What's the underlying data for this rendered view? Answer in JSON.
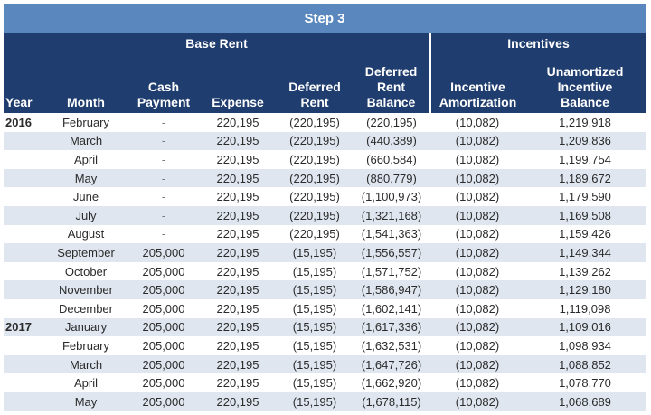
{
  "title": "Step 3",
  "groups": {
    "base_rent": "Base Rent",
    "incentives": "Incentives"
  },
  "headers": {
    "year": "Year",
    "month": "Month",
    "cash_line1": "Cash",
    "cash_line2": "Payment",
    "expense": "Expense",
    "deferred_line1": "Deferred",
    "deferred_line2": "Rent",
    "balance_line1": "Deferred",
    "balance_line2": "Rent",
    "balance_line3": "Balance",
    "amort_line1": "Incentive",
    "amort_line2": "Amortization",
    "unam_line1": "Unamortized",
    "unam_line2": "Incentive",
    "unam_line3": "Balance"
  },
  "rows": [
    {
      "year": "2016",
      "month": "February",
      "cash": "-",
      "expense": "220,195",
      "deferred": "(220,195)",
      "balance": "(220,195)",
      "amortization": "(10,082)",
      "unamortized": "1,219,918"
    },
    {
      "year": "",
      "month": "March",
      "cash": "-",
      "expense": "220,195",
      "deferred": "(220,195)",
      "balance": "(440,389)",
      "amortization": "(10,082)",
      "unamortized": "1,209,836"
    },
    {
      "year": "",
      "month": "April",
      "cash": "-",
      "expense": "220,195",
      "deferred": "(220,195)",
      "balance": "(660,584)",
      "amortization": "(10,082)",
      "unamortized": "1,199,754"
    },
    {
      "year": "",
      "month": "May",
      "cash": "-",
      "expense": "220,195",
      "deferred": "(220,195)",
      "balance": "(880,779)",
      "amortization": "(10,082)",
      "unamortized": "1,189,672"
    },
    {
      "year": "",
      "month": "June",
      "cash": "-",
      "expense": "220,195",
      "deferred": "(220,195)",
      "balance": "(1,100,973)",
      "amortization": "(10,082)",
      "unamortized": "1,179,590"
    },
    {
      "year": "",
      "month": "July",
      "cash": "-",
      "expense": "220,195",
      "deferred": "(220,195)",
      "balance": "(1,321,168)",
      "amortization": "(10,082)",
      "unamortized": "1,169,508"
    },
    {
      "year": "",
      "month": "August",
      "cash": "-",
      "expense": "220,195",
      "deferred": "(220,195)",
      "balance": "(1,541,363)",
      "amortization": "(10,082)",
      "unamortized": "1,159,426"
    },
    {
      "year": "",
      "month": "September",
      "cash": "205,000",
      "expense": "220,195",
      "deferred": "(15,195)",
      "balance": "(1,556,557)",
      "amortization": "(10,082)",
      "unamortized": "1,149,344"
    },
    {
      "year": "",
      "month": "October",
      "cash": "205,000",
      "expense": "220,195",
      "deferred": "(15,195)",
      "balance": "(1,571,752)",
      "amortization": "(10,082)",
      "unamortized": "1,139,262"
    },
    {
      "year": "",
      "month": "November",
      "cash": "205,000",
      "expense": "220,195",
      "deferred": "(15,195)",
      "balance": "(1,586,947)",
      "amortization": "(10,082)",
      "unamortized": "1,129,180"
    },
    {
      "year": "",
      "month": "December",
      "cash": "205,000",
      "expense": "220,195",
      "deferred": "(15,195)",
      "balance": "(1,602,141)",
      "amortization": "(10,082)",
      "unamortized": "1,119,098"
    },
    {
      "year": "2017",
      "month": "January",
      "cash": "205,000",
      "expense": "220,195",
      "deferred": "(15,195)",
      "balance": "(1,617,336)",
      "amortization": "(10,082)",
      "unamortized": "1,109,016"
    },
    {
      "year": "",
      "month": "February",
      "cash": "205,000",
      "expense": "220,195",
      "deferred": "(15,195)",
      "balance": "(1,632,531)",
      "amortization": "(10,082)",
      "unamortized": "1,098,934"
    },
    {
      "year": "",
      "month": "March",
      "cash": "205,000",
      "expense": "220,195",
      "deferred": "(15,195)",
      "balance": "(1,647,726)",
      "amortization": "(10,082)",
      "unamortized": "1,088,852"
    },
    {
      "year": "",
      "month": "April",
      "cash": "205,000",
      "expense": "220,195",
      "deferred": "(15,195)",
      "balance": "(1,662,920)",
      "amortization": "(10,082)",
      "unamortized": "1,078,770"
    },
    {
      "year": "",
      "month": "May",
      "cash": "205,000",
      "expense": "220,195",
      "deferred": "(15,195)",
      "balance": "(1,678,115)",
      "amortization": "(10,082)",
      "unamortized": "1,068,689"
    }
  ]
}
